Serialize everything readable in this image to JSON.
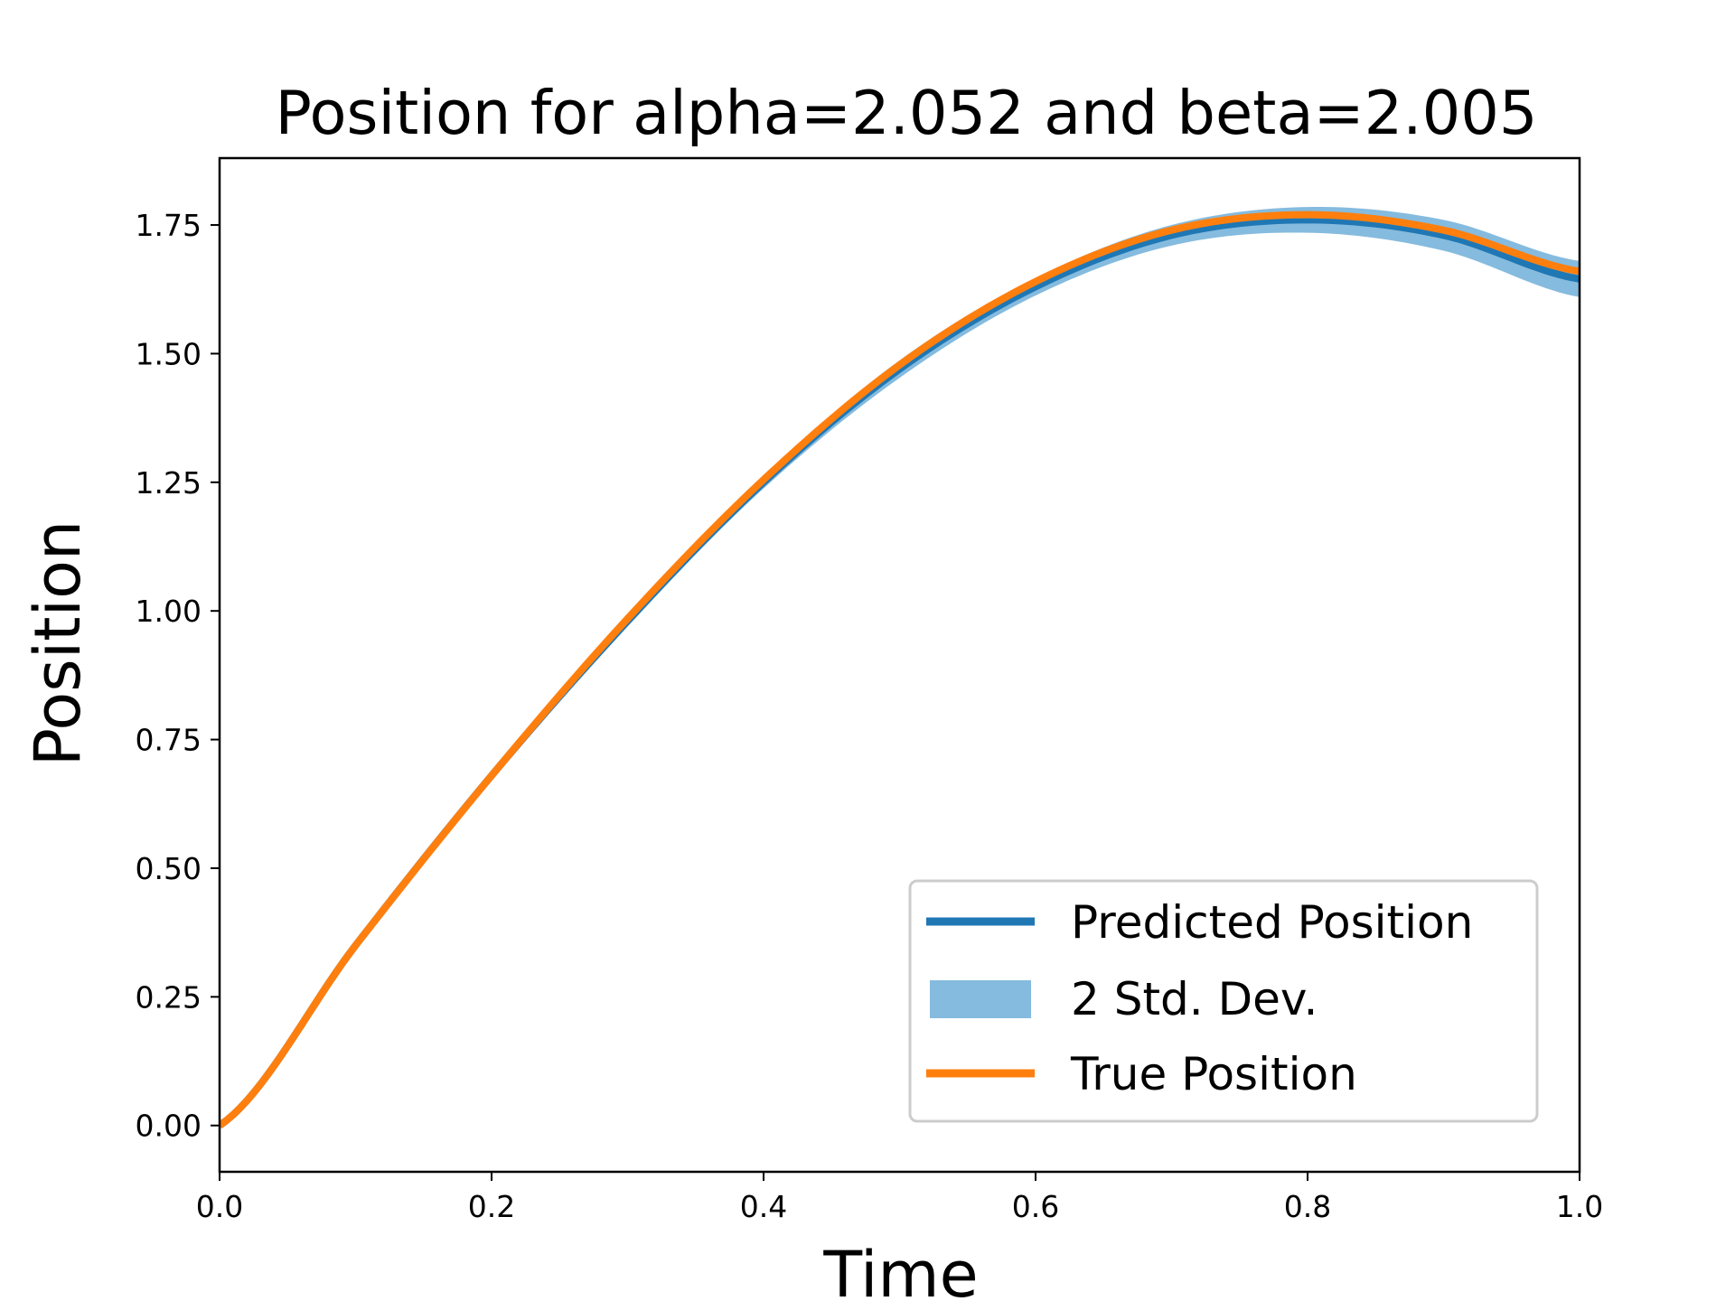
{
  "chart_data": {
    "type": "line",
    "title": "Position for alpha=2.052 and beta=2.005",
    "xlabel": "Time",
    "ylabel": "Position",
    "xlim": [
      0.0,
      1.0
    ],
    "ylim": [
      -0.09,
      1.88
    ],
    "grid": false,
    "legend_placement": "lower-right",
    "x_ticks": [
      {
        "value": 0.0,
        "label": "0.0"
      },
      {
        "value": 0.2,
        "label": "0.2"
      },
      {
        "value": 0.4,
        "label": "0.4"
      },
      {
        "value": 0.6,
        "label": "0.6"
      },
      {
        "value": 0.8,
        "label": "0.8"
      },
      {
        "value": 1.0,
        "label": "1.0"
      }
    ],
    "y_ticks": [
      {
        "value": 0.0,
        "label": "0.00"
      },
      {
        "value": 0.25,
        "label": "0.25"
      },
      {
        "value": 0.5,
        "label": "0.50"
      },
      {
        "value": 0.75,
        "label": "0.75"
      },
      {
        "value": 1.0,
        "label": "1.00"
      },
      {
        "value": 1.25,
        "label": "1.25"
      },
      {
        "value": 1.5,
        "label": "1.50"
      },
      {
        "value": 1.75,
        "label": "1.75"
      }
    ],
    "x": [
      0.0,
      0.1,
      0.2,
      0.3,
      0.4,
      0.5,
      0.6,
      0.7,
      0.8,
      0.9,
      1.0
    ],
    "series": [
      {
        "name": "Predicted Position",
        "kind": "line",
        "color": "#1f77b4",
        "values": [
          0.0,
          0.35,
          0.68,
          0.98,
          1.25,
          1.47,
          1.63,
          1.73,
          1.76,
          1.73,
          1.645
        ]
      },
      {
        "name": "2 Std. Dev.",
        "kind": "band",
        "color": "#85bbde",
        "lower": [
          0.0,
          0.349,
          0.676,
          0.972,
          1.238,
          1.453,
          1.613,
          1.71,
          1.735,
          1.7,
          1.61
        ],
        "upper": [
          0.0,
          0.351,
          0.684,
          0.988,
          1.262,
          1.487,
          1.647,
          1.75,
          1.785,
          1.76,
          1.68
        ]
      },
      {
        "name": "True Position",
        "kind": "line",
        "color": "#ff7f0e",
        "values": [
          0.0,
          0.35,
          0.68,
          0.985,
          1.255,
          1.478,
          1.64,
          1.74,
          1.77,
          1.74,
          1.66
        ]
      }
    ]
  }
}
